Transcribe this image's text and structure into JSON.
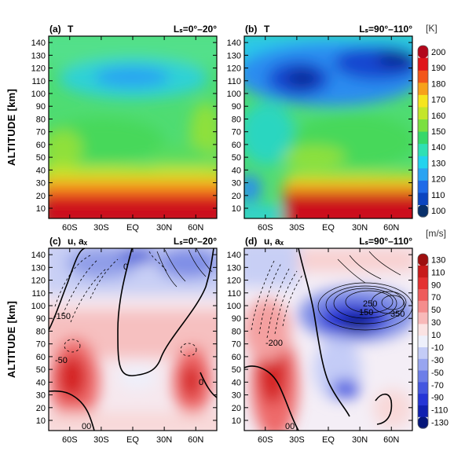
{
  "panels": [
    {
      "tag": "(a)",
      "quantity": "T",
      "ls_range": "Lₛ=0°–20°"
    },
    {
      "tag": "(b)",
      "quantity": "T",
      "ls_range": "Lₛ=90°–110°"
    },
    {
      "tag": "(c)",
      "quantity": "u, aₓ",
      "ls_range": "Lₛ=0°–20°"
    },
    {
      "tag": "(d)",
      "quantity": "u, aₓ",
      "ls_range": "Lₛ=90°–110°"
    }
  ],
  "colors": {
    "temperature_scale": [
      "#08306b",
      "#0b45c0",
      "#1f6be8",
      "#2aa3f2",
      "#22d3ee",
      "#2fe0b4",
      "#36d86a",
      "#7be040",
      "#c4e62a",
      "#f6e51e",
      "#f7a11a",
      "#f2561a",
      "#e0141a",
      "#b3061b"
    ],
    "wind_scale": [
      "#06167a",
      "#1020b0",
      "#2535d6",
      "#4457e0",
      "#6d7ee8",
      "#98a5f0",
      "#c4ccf7",
      "#eef0fb",
      "#fbe3e3",
      "#f8b9b9",
      "#f48d8d",
      "#ee5c5c",
      "#e43131",
      "#c81a1a",
      "#9e0f0f"
    ]
  },
  "chart_data": [
    {
      "type": "heatmap",
      "panel": "(a)",
      "variable": "T",
      "ylabel": "ALTITUDE [km]",
      "x_ticks": [
        "60S",
        "30S",
        "EQ",
        "30N",
        "60N"
      ],
      "y_ticks": [
        10,
        20,
        30,
        40,
        50,
        60,
        70,
        80,
        90,
        100,
        110,
        120,
        130,
        140
      ],
      "xlim": [
        -80,
        80
      ],
      "ylim": [
        2,
        145
      ],
      "features": [
        {
          "lat": -5,
          "alt": 115,
          "value": 125
        },
        {
          "lat": 0,
          "alt": 15,
          "value": 200
        },
        {
          "lat": 0,
          "alt": 60,
          "value": 150
        }
      ]
    },
    {
      "type": "heatmap",
      "panel": "(b)",
      "variable": "T",
      "ylabel": "",
      "x_ticks": [
        "60S",
        "30S",
        "EQ",
        "30N",
        "60N"
      ],
      "y_ticks": [
        10,
        20,
        30,
        40,
        50,
        60,
        70,
        80,
        90,
        100,
        110,
        120,
        130,
        140
      ],
      "xlim": [
        -80,
        80
      ],
      "ylim": [
        2,
        145
      ],
      "features": [
        {
          "lat": -30,
          "alt": 112,
          "value": 100
        },
        {
          "lat": 60,
          "alt": 120,
          "value": 100
        },
        {
          "lat": 20,
          "alt": 15,
          "value": 200
        },
        {
          "lat": -75,
          "alt": 20,
          "value": 120
        }
      ]
    },
    {
      "type": "heatmap",
      "panel": "(c)",
      "variable": "u, aₓ",
      "ylabel": "ALTITUDE [km]",
      "x_ticks": [
        "60S",
        "30S",
        "EQ",
        "30N",
        "60N"
      ],
      "y_ticks": [
        10,
        20,
        30,
        40,
        50,
        60,
        70,
        80,
        90,
        100,
        110,
        120,
        130,
        140
      ],
      "xlim": [
        -80,
        80
      ],
      "ylim": [
        2,
        145
      ],
      "features": [
        {
          "lat": -55,
          "alt": 40,
          "value": 80
        },
        {
          "lat": 50,
          "alt": 40,
          "value": 70
        },
        {
          "lat": 0,
          "alt": 130,
          "value": -40
        }
      ],
      "contour_labels": [
        "0",
        "-150",
        "-50",
        "0",
        "0",
        "00"
      ]
    },
    {
      "type": "heatmap",
      "panel": "(d)",
      "variable": "u, aₓ",
      "ylabel": "",
      "x_ticks": [
        "60S",
        "30S",
        "EQ",
        "30N",
        "60N"
      ],
      "y_ticks": [
        10,
        20,
        30,
        40,
        50,
        60,
        70,
        80,
        90,
        100,
        110,
        120,
        130,
        140
      ],
      "xlim": [
        -80,
        80
      ],
      "ylim": [
        2,
        145
      ],
      "features": [
        {
          "lat": -55,
          "alt": 45,
          "value": 110
        },
        {
          "lat": 40,
          "alt": 90,
          "value": -130
        },
        {
          "lat": 35,
          "alt": 35,
          "value": -70
        }
      ],
      "contour_labels": [
        "-200",
        "250",
        "150",
        "350",
        "00"
      ]
    }
  ],
  "colorbars": [
    {
      "unit": "[K]",
      "ticks": [
        100,
        110,
        120,
        130,
        140,
        150,
        160,
        170,
        180,
        190,
        200
      ]
    },
    {
      "unit": "[m/s]",
      "ticks": [
        -130,
        -110,
        -90,
        -70,
        -50,
        -30,
        -10,
        10,
        30,
        50,
        70,
        90,
        110,
        130
      ]
    }
  ]
}
